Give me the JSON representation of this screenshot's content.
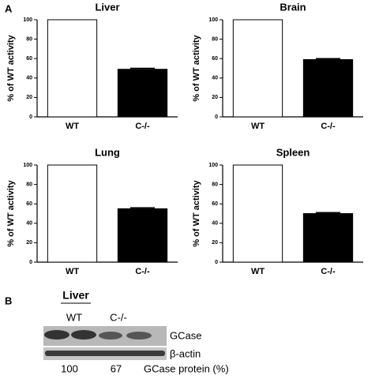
{
  "panel_labels": [
    "A",
    "B"
  ],
  "chart_data": [
    {
      "type": "bar",
      "title": "Liver",
      "ylabel": "% of WT activity",
      "categories": [
        "WT",
        "C-/-"
      ],
      "values": [
        100,
        49
      ],
      "errors": [
        null,
        1
      ],
      "colors": [
        "#ffffff",
        "#000000"
      ],
      "ylim": [
        0,
        100
      ],
      "yticks": [
        0,
        20,
        40,
        60,
        80,
        100
      ]
    },
    {
      "type": "bar",
      "title": "Brain",
      "ylabel": "% of WT activity",
      "categories": [
        "WT",
        "C-/-"
      ],
      "values": [
        100,
        59
      ],
      "errors": [
        null,
        1
      ],
      "colors": [
        "#ffffff",
        "#000000"
      ],
      "ylim": [
        0,
        100
      ],
      "yticks": [
        0,
        20,
        40,
        60,
        80,
        100
      ]
    },
    {
      "type": "bar",
      "title": "Lung",
      "ylabel": "% of WT activity",
      "categories": [
        "WT",
        "C-/-"
      ],
      "values": [
        100,
        55
      ],
      "errors": [
        null,
        1
      ],
      "colors": [
        "#ffffff",
        "#000000"
      ],
      "ylim": [
        0,
        100
      ],
      "yticks": [
        0,
        20,
        40,
        60,
        80,
        100
      ]
    },
    {
      "type": "bar",
      "title": "Spleen",
      "ylabel": "% of WT activity",
      "categories": [
        "WT",
        "C-/-"
      ],
      "values": [
        100,
        50
      ],
      "errors": [
        null,
        1
      ],
      "colors": [
        "#ffffff",
        "#000000"
      ],
      "ylim": [
        0,
        100
      ],
      "yticks": [
        0,
        20,
        40,
        60,
        80,
        100
      ]
    }
  ],
  "blot": {
    "title": "Liver",
    "lanes": [
      "WT",
      "C-/-"
    ],
    "bands": [
      "GCase",
      "β-actin"
    ],
    "quantities": [
      100,
      67
    ],
    "quantity_label": "GCase protein (%)"
  }
}
